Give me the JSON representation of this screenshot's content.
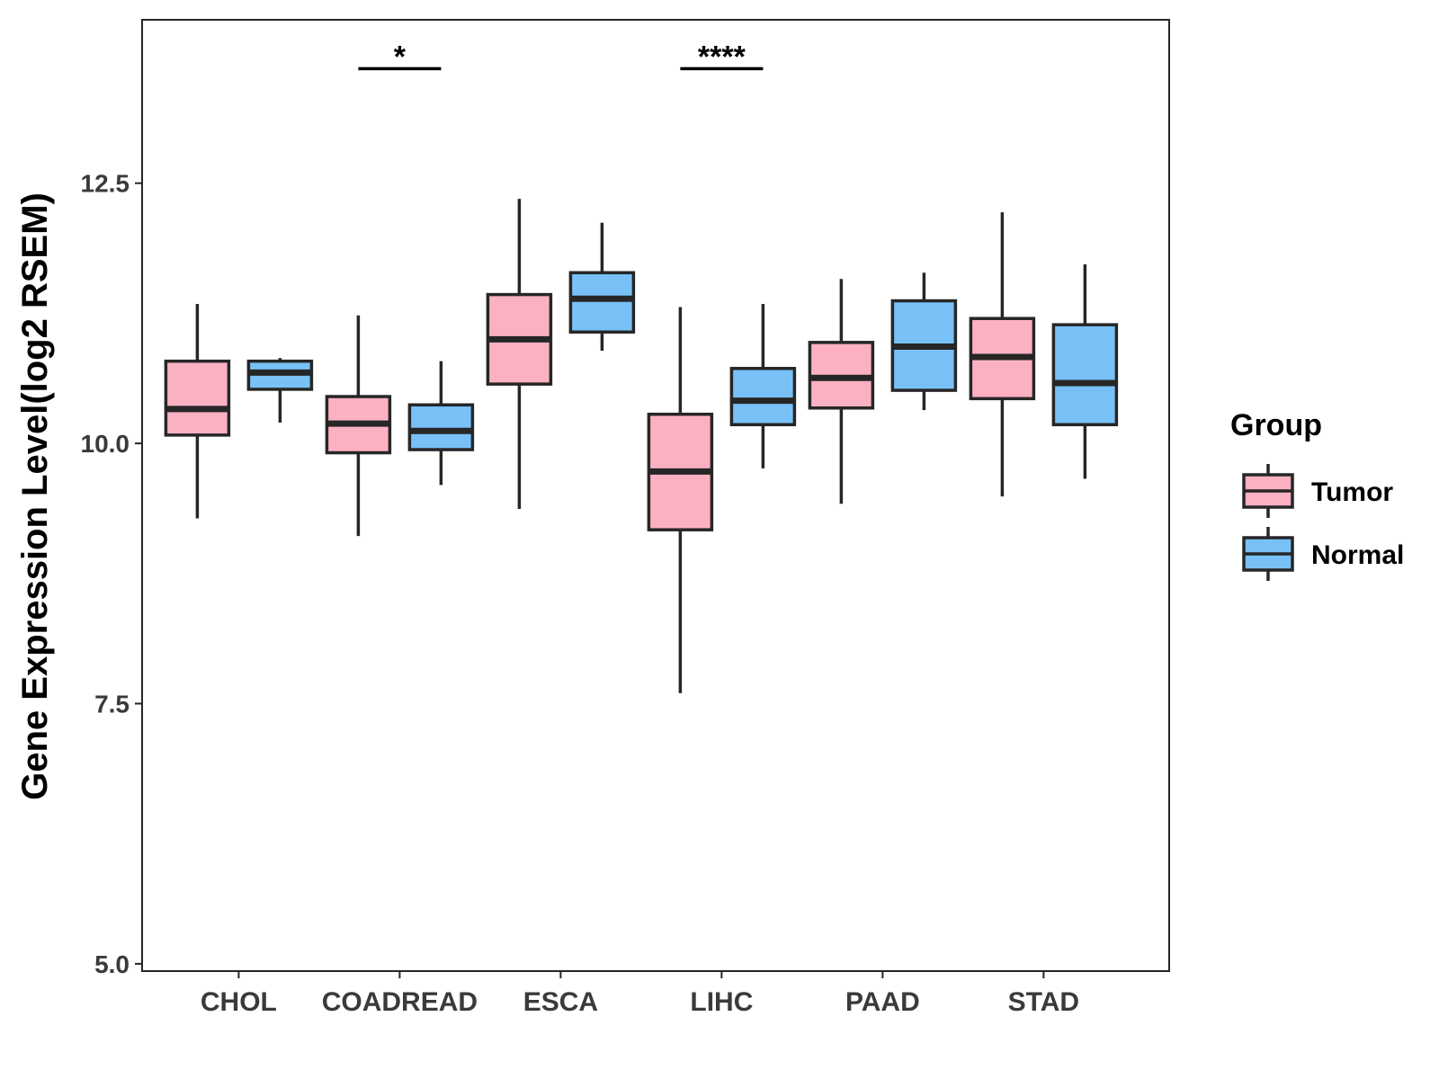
{
  "chart_data": {
    "type": "box",
    "title": "",
    "xlabel": "",
    "ylabel": "Gene Expression Level(log2 RSEM)",
    "ylim": [
      4.93,
      14.07
    ],
    "yticks": [
      5.0,
      7.5,
      10.0,
      12.5
    ],
    "ytick_labels": [
      "5.0",
      "7.5",
      "10.0",
      "12.5"
    ],
    "categories": [
      "CHOL",
      "COADREAD",
      "ESCA",
      "LIHC",
      "PAAD",
      "STAD"
    ],
    "grid": false,
    "legend": {
      "title": "Group",
      "position": "right",
      "entries": [
        "Tumor",
        "Normal"
      ]
    },
    "colors": {
      "Tumor": "#fbb1c1",
      "Normal": "#78c1f7",
      "outline": "#262626"
    },
    "series": [
      {
        "name": "Tumor",
        "boxes": [
          {
            "category": "CHOL",
            "whisker_low": 9.28,
            "q1": 10.08,
            "median": 10.33,
            "q3": 10.79,
            "whisker_high": 11.34
          },
          {
            "category": "COADREAD",
            "whisker_low": 9.11,
            "q1": 9.91,
            "median": 10.19,
            "q3": 10.45,
            "whisker_high": 11.23
          },
          {
            "category": "ESCA",
            "whisker_low": 9.37,
            "q1": 10.57,
            "median": 11.0,
            "q3": 11.43,
            "whisker_high": 12.35
          },
          {
            "category": "LIHC",
            "whisker_low": 7.6,
            "q1": 9.17,
            "median": 9.73,
            "q3": 10.28,
            "whisker_high": 11.31
          },
          {
            "category": "PAAD",
            "whisker_low": 9.42,
            "q1": 10.34,
            "median": 10.63,
            "q3": 10.97,
            "whisker_high": 11.58
          },
          {
            "category": "STAD",
            "whisker_low": 9.49,
            "q1": 10.43,
            "median": 10.83,
            "q3": 11.2,
            "whisker_high": 12.22
          }
        ]
      },
      {
        "name": "Normal",
        "boxes": [
          {
            "category": "CHOL",
            "whisker_low": 10.2,
            "q1": 10.52,
            "median": 10.68,
            "q3": 10.79,
            "whisker_high": 10.82
          },
          {
            "category": "COADREAD",
            "whisker_low": 9.6,
            "q1": 9.94,
            "median": 10.12,
            "q3": 10.37,
            "whisker_high": 10.79
          },
          {
            "category": "ESCA",
            "whisker_low": 10.89,
            "q1": 11.07,
            "median": 11.39,
            "q3": 11.64,
            "whisker_high": 12.12
          },
          {
            "category": "LIHC",
            "whisker_low": 9.76,
            "q1": 10.18,
            "median": 10.41,
            "q3": 10.72,
            "whisker_high": 11.34
          },
          {
            "category": "PAAD",
            "whisker_low": 10.32,
            "q1": 10.51,
            "median": 10.93,
            "q3": 11.37,
            "whisker_high": 11.64
          },
          {
            "category": "STAD",
            "whisker_low": 9.66,
            "q1": 10.18,
            "median": 10.58,
            "q3": 11.14,
            "whisker_high": 11.72
          }
        ]
      }
    ],
    "annotations": [
      {
        "category": "COADREAD",
        "label": "*",
        "y": 13.6
      },
      {
        "category": "LIHC",
        "label": "****",
        "y": 13.6
      }
    ]
  }
}
